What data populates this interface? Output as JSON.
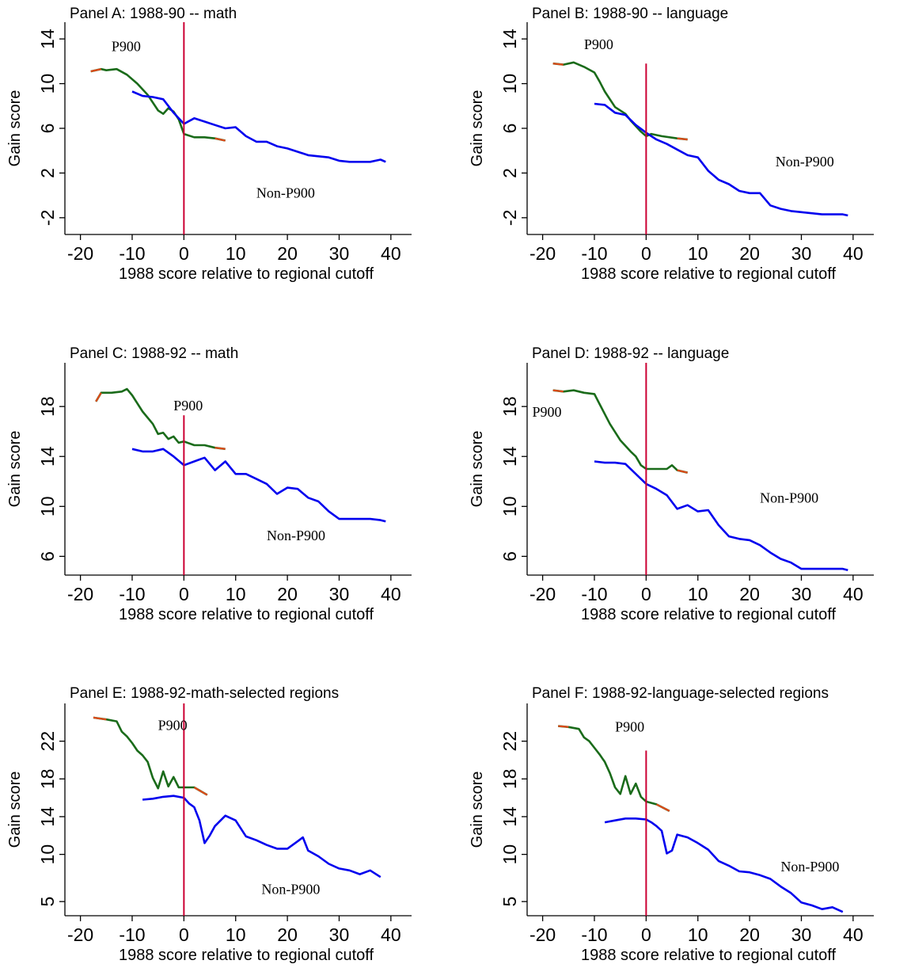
{
  "chart_data": [
    {
      "type": "line",
      "title": "Panel A: 1988-90 -- math",
      "xlabel": "1988 score relative to regional cutoff",
      "ylabel": "Gain score",
      "xlim": [
        -23,
        44
      ],
      "ylim": [
        -3.5,
        15.5
      ],
      "xticks": [
        -20,
        -10,
        0,
        10,
        20,
        30,
        40
      ],
      "yticks": [
        -2,
        2,
        6,
        10,
        14
      ],
      "cutoff_x": 0,
      "cutoff_top": 15.5,
      "series": [
        {
          "name": "P900",
          "color": "#1a6b1a",
          "x": [
            -18,
            -16,
            -15,
            -13,
            -11,
            -9,
            -7,
            -5,
            -4,
            -3,
            -2,
            -1,
            0,
            2,
            4,
            6,
            8
          ],
          "y": [
            11.1,
            11.3,
            11.2,
            11.3,
            10.8,
            10.0,
            9.0,
            7.6,
            7.3,
            7.8,
            7.5,
            6.8,
            5.5,
            5.2,
            5.2,
            5.1,
            4.9
          ]
        },
        {
          "name": "Non-P900",
          "color": "#0000ee",
          "x": [
            -10,
            -8,
            -6,
            -4,
            -2,
            0,
            2,
            4,
            6,
            8,
            10,
            12,
            14,
            16,
            18,
            20,
            22,
            24,
            26,
            28,
            30,
            32,
            34,
            36,
            38,
            39
          ],
          "y": [
            9.3,
            8.9,
            8.8,
            8.6,
            7.4,
            6.4,
            6.9,
            6.6,
            6.3,
            6.0,
            6.1,
            5.3,
            4.8,
            4.8,
            4.4,
            4.2,
            3.9,
            3.6,
            3.5,
            3.4,
            3.1,
            3.0,
            3.0,
            3.0,
            3.2,
            3.0
          ]
        }
      ],
      "labels": [
        {
          "text": "P900",
          "x": -14,
          "y": 12.9
        },
        {
          "text": "Non-P900",
          "x": 14,
          "y": -0.2
        }
      ]
    },
    {
      "type": "line",
      "title": "Panel B: 1988-90 -- language",
      "xlabel": "1988 score relative to regional cutoff",
      "ylabel": "Gain score",
      "xlim": [
        -23,
        44
      ],
      "ylim": [
        -3.5,
        15.5
      ],
      "xticks": [
        -20,
        -10,
        0,
        10,
        20,
        30,
        40
      ],
      "yticks": [
        -2,
        2,
        6,
        10,
        14
      ],
      "cutoff_x": 0,
      "cutoff_top": 11.8,
      "series": [
        {
          "name": "P900",
          "color": "#1a6b1a",
          "x": [
            -18,
            -16,
            -14,
            -12,
            -10,
            -9,
            -8,
            -6,
            -4,
            -3,
            -2,
            -1,
            0,
            1,
            3,
            6,
            8
          ],
          "y": [
            11.8,
            11.7,
            11.9,
            11.5,
            11.0,
            10.2,
            9.3,
            7.9,
            7.3,
            6.7,
            6.2,
            5.7,
            5.3,
            5.5,
            5.3,
            5.1,
            5.0
          ]
        },
        {
          "name": "Non-P900",
          "color": "#0000ee",
          "x": [
            -10,
            -8,
            -6,
            -4,
            -2,
            0,
            2,
            4,
            6,
            8,
            10,
            12,
            14,
            16,
            18,
            20,
            22,
            24,
            26,
            28,
            30,
            32,
            34,
            36,
            38,
            39
          ],
          "y": [
            8.2,
            8.1,
            7.4,
            7.2,
            6.3,
            5.6,
            5.0,
            4.6,
            4.1,
            3.6,
            3.4,
            2.2,
            1.4,
            1.0,
            0.4,
            0.2,
            0.2,
            -0.9,
            -1.2,
            -1.4,
            -1.5,
            -1.6,
            -1.7,
            -1.7,
            -1.7,
            -1.8
          ]
        }
      ],
      "labels": [
        {
          "text": "P900",
          "x": -12,
          "y": 13.1
        },
        {
          "text": "Non-P900",
          "x": 25,
          "y": 2.6
        }
      ]
    },
    {
      "type": "line",
      "title": "Panel C: 1988-92 -- math",
      "xlabel": "1988 score relative to regional cutoff",
      "ylabel": "Gain score",
      "xlim": [
        -23,
        44
      ],
      "ylim": [
        4.5,
        21.5
      ],
      "xticks": [
        -20,
        -10,
        0,
        10,
        20,
        30,
        40
      ],
      "yticks": [
        6,
        10,
        14,
        18
      ],
      "cutoff_x": 0,
      "cutoff_top": 17.3,
      "series": [
        {
          "name": "P900",
          "color": "#1a6b1a",
          "x": [
            -17,
            -16,
            -14,
            -12,
            -11,
            -10,
            -8,
            -6,
            -5,
            -4,
            -3,
            -2,
            -1,
            0,
            2,
            4,
            6,
            8
          ],
          "y": [
            18.4,
            19.1,
            19.1,
            19.2,
            19.4,
            18.9,
            17.6,
            16.6,
            15.8,
            15.9,
            15.4,
            15.6,
            15.1,
            15.2,
            14.9,
            14.9,
            14.7,
            14.6
          ]
        },
        {
          "name": "Non-P900",
          "color": "#0000ee",
          "x": [
            -10,
            -8,
            -6,
            -4,
            -2,
            0,
            2,
            4,
            6,
            8,
            10,
            12,
            14,
            16,
            18,
            20,
            22,
            24,
            26,
            28,
            30,
            32,
            34,
            36,
            38,
            39
          ],
          "y": [
            14.6,
            14.4,
            14.4,
            14.6,
            14.0,
            13.3,
            13.6,
            13.9,
            12.9,
            13.6,
            12.6,
            12.6,
            12.2,
            11.8,
            11.0,
            11.5,
            11.4,
            10.7,
            10.4,
            9.6,
            9.0,
            9.0,
            9.0,
            9.0,
            8.9,
            8.8
          ]
        }
      ],
      "labels": [
        {
          "text": "P900",
          "x": -2,
          "y": 17.7
        },
        {
          "text": "Non-P900",
          "x": 16,
          "y": 7.3
        }
      ]
    },
    {
      "type": "line",
      "title": "Panel D: 1988-92 -- language",
      "xlabel": "1988 score relative to regional cutoff",
      "ylabel": "Gain score",
      "xlim": [
        -23,
        44
      ],
      "ylim": [
        4.5,
        21.5
      ],
      "xticks": [
        -20,
        -10,
        0,
        10,
        20,
        30,
        40
      ],
      "yticks": [
        6,
        10,
        14,
        18
      ],
      "cutoff_x": 0,
      "cutoff_top": 21.5,
      "series": [
        {
          "name": "P900",
          "color": "#1a6b1a",
          "x": [
            -18,
            -16,
            -14,
            -12,
            -10,
            -9,
            -7,
            -5,
            -3,
            -2,
            -1,
            0,
            2,
            4,
            5,
            6,
            8
          ],
          "y": [
            19.3,
            19.2,
            19.3,
            19.1,
            19.0,
            18.2,
            16.6,
            15.3,
            14.4,
            14.0,
            13.3,
            13.0,
            13.0,
            13.0,
            13.3,
            12.9,
            12.7
          ]
        },
        {
          "name": "Non-P900",
          "color": "#0000ee",
          "x": [
            -10,
            -8,
            -6,
            -4,
            -2,
            0,
            2,
            4,
            6,
            8,
            10,
            12,
            14,
            16,
            18,
            20,
            22,
            24,
            26,
            28,
            30,
            32,
            34,
            36,
            38,
            39
          ],
          "y": [
            13.6,
            13.5,
            13.5,
            13.4,
            12.6,
            11.8,
            11.4,
            10.9,
            9.8,
            10.1,
            9.6,
            9.7,
            8.5,
            7.6,
            7.4,
            7.3,
            6.9,
            6.3,
            5.8,
            5.5,
            5.0,
            5.0,
            5.0,
            5.0,
            5.0,
            4.9
          ]
        }
      ],
      "labels": [
        {
          "text": "P900",
          "x": -22,
          "y": 17.2
        },
        {
          "text": "Non-P900",
          "x": 22,
          "y": 10.3
        }
      ]
    },
    {
      "type": "line",
      "title": "Panel E: 1988-92-math-selected regions",
      "xlabel": "1988 score relative to regional cutoff",
      "ylabel": "Gain score",
      "xlim": [
        -23,
        44
      ],
      "ylim": [
        3.5,
        26.0
      ],
      "xticks": [
        -20,
        -10,
        0,
        10,
        20,
        30,
        40
      ],
      "yticks": [
        5,
        10,
        14,
        18,
        22
      ],
      "cutoff_x": 0,
      "cutoff_top": 26.0,
      "series": [
        {
          "name": "P900",
          "color": "#1a6b1a",
          "x": [
            -17.5,
            -15,
            -13,
            -12,
            -11,
            -10,
            -9,
            -8,
            -7,
            -6,
            -5,
            -4,
            -3,
            -2,
            -1,
            0,
            2,
            4.5
          ],
          "y": [
            24.5,
            24.3,
            24.1,
            23.0,
            22.5,
            21.8,
            21.0,
            20.5,
            19.8,
            18.1,
            17.0,
            18.8,
            17.2,
            18.2,
            17.1,
            17.1,
            17.1,
            16.3
          ]
        },
        {
          "name": "Non-P900",
          "color": "#0000ee",
          "x": [
            -8,
            -6,
            -4,
            -2,
            0,
            1,
            2,
            3,
            4,
            5,
            6,
            8,
            10,
            12,
            14,
            16,
            18,
            20,
            22,
            23,
            24,
            26,
            28,
            30,
            32,
            34,
            36,
            38
          ],
          "y": [
            15.8,
            15.9,
            16.1,
            16.2,
            16.0,
            15.4,
            15.0,
            13.6,
            11.2,
            12.0,
            13.0,
            14.1,
            13.6,
            11.9,
            11.5,
            11.0,
            10.6,
            10.6,
            11.4,
            11.8,
            10.4,
            9.8,
            9.0,
            8.5,
            8.3,
            7.9,
            8.3,
            7.6
          ]
        }
      ],
      "labels": [
        {
          "text": "P900",
          "x": -5,
          "y": 23.2
        },
        {
          "text": "Non-P900",
          "x": 15,
          "y": 5.8
        }
      ]
    },
    {
      "type": "line",
      "title": "Panel F: 1988-92-language-selected regions",
      "xlabel": "1988 score relative to regional cutoff",
      "ylabel": "Gain score",
      "xlim": [
        -23,
        44
      ],
      "ylim": [
        3.5,
        26.0
      ],
      "xticks": [
        -20,
        -10,
        0,
        10,
        20,
        30,
        40
      ],
      "yticks": [
        5,
        10,
        14,
        18,
        22
      ],
      "cutoff_x": 0,
      "cutoff_top": 21.0,
      "series": [
        {
          "name": "P900",
          "color": "#1a6b1a",
          "x": [
            -17,
            -15,
            -13,
            -12,
            -11,
            -10,
            -9,
            -8,
            -7,
            -6,
            -5,
            -4,
            -3,
            -2,
            -1,
            0,
            2,
            4.5
          ],
          "y": [
            23.6,
            23.5,
            23.3,
            22.4,
            22.0,
            21.3,
            20.6,
            19.8,
            18.6,
            17.1,
            16.4,
            18.3,
            16.4,
            17.5,
            16.1,
            15.6,
            15.3,
            14.6
          ]
        },
        {
          "name": "Non-P900",
          "color": "#0000ee",
          "x": [
            -8,
            -6,
            -4,
            -2,
            0,
            1,
            2,
            3,
            4,
            5,
            6,
            8,
            10,
            12,
            14,
            16,
            18,
            20,
            22,
            24,
            26,
            28,
            30,
            32,
            34,
            36,
            38
          ],
          "y": [
            13.4,
            13.6,
            13.8,
            13.8,
            13.7,
            13.4,
            13.0,
            12.5,
            10.1,
            10.4,
            12.1,
            11.8,
            11.2,
            10.5,
            9.3,
            8.8,
            8.2,
            8.1,
            7.8,
            7.4,
            6.6,
            5.9,
            4.9,
            4.6,
            4.2,
            4.4,
            3.9
          ]
        }
      ],
      "labels": [
        {
          "text": "P900",
          "x": -6,
          "y": 23.0
        },
        {
          "text": "Non-P900",
          "x": 26,
          "y": 8.2
        }
      ]
    }
  ],
  "style": {
    "p900_color": "#1a6b1a",
    "p900_endcap_color": "#e04a1a",
    "nonp900_color": "#0000ee",
    "cutoff_color": "#cc0033"
  }
}
